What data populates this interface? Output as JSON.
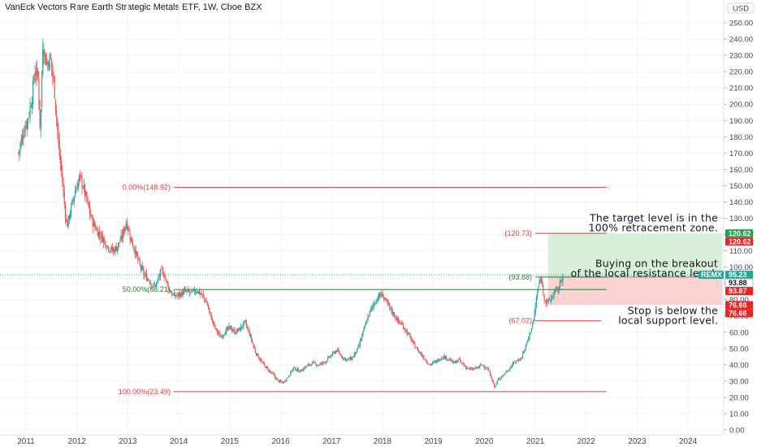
{
  "header": {
    "title": "VanEck Vectors Rare Earth Strategic Metals ETF, 1W, Cboe BZX"
  },
  "currency_label": "USD",
  "colors": {
    "up": "#26a69a",
    "down": "#ef5350",
    "fib_red": "#e03b3b",
    "fib_green": "#2e7d32",
    "target_zone": "#d8f0d9",
    "stop_zone": "#fbd2d2",
    "tag_green": "#1ea24a",
    "tag_red": "#f02323",
    "tag_teal": "#22a69a",
    "axis_text": "#434651"
  },
  "chart_data": {
    "type": "candlestick",
    "title": "VanEck Vectors Rare Earth Strategic Metals ETF, 1W, Cboe BZX",
    "ylim": [
      0,
      255
    ],
    "y_ticks": [
      0,
      10,
      20,
      30,
      40,
      50,
      60,
      70,
      80,
      90,
      100,
      110,
      120,
      130,
      140,
      150,
      160,
      170,
      180,
      190,
      200,
      210,
      220,
      230,
      240,
      250
    ],
    "y_tick_labels": [
      "0.00",
      "10.00",
      "20.00",
      "30.00",
      "40.00",
      "50.00",
      "60.00",
      "70.00",
      "80.00",
      "90.00",
      "100.00",
      "110.00",
      "120.00",
      "130.00",
      "140.00",
      "150.00",
      "160.00",
      "170.00",
      "180.00",
      "190.00",
      "200.00",
      "210.00",
      "220.00",
      "230.00",
      "240.00",
      "250.00"
    ],
    "x_ticks": [
      "2011",
      "2012",
      "2013",
      "2014",
      "2015",
      "2016",
      "2017",
      "2018",
      "2019",
      "2020",
      "2021",
      "2022",
      "2023",
      "2024"
    ],
    "xlim": [
      2010.8,
      2025.0
    ],
    "price_path": [
      [
        2010.85,
        170
      ],
      [
        2010.95,
        183
      ],
      [
        2011.05,
        193
      ],
      [
        2011.12,
        205
      ],
      [
        2011.18,
        222
      ],
      [
        2011.24,
        215
      ],
      [
        2011.28,
        182
      ],
      [
        2011.33,
        238
      ],
      [
        2011.4,
        225
      ],
      [
        2011.48,
        228
      ],
      [
        2011.55,
        212
      ],
      [
        2011.6,
        192
      ],
      [
        2011.65,
        170
      ],
      [
        2011.7,
        158
      ],
      [
        2011.75,
        140
      ],
      [
        2011.8,
        125
      ],
      [
        2011.88,
        135
      ],
      [
        2011.95,
        145
      ],
      [
        2012.05,
        155
      ],
      [
        2012.12,
        150
      ],
      [
        2012.2,
        140
      ],
      [
        2012.3,
        128
      ],
      [
        2012.4,
        122
      ],
      [
        2012.5,
        118
      ],
      [
        2012.6,
        113
      ],
      [
        2012.7,
        110
      ],
      [
        2012.78,
        112
      ],
      [
        2012.88,
        118
      ],
      [
        2012.97,
        128
      ],
      [
        2013.05,
        118
      ],
      [
        2013.12,
        112
      ],
      [
        2013.22,
        102
      ],
      [
        2013.32,
        95
      ],
      [
        2013.42,
        92
      ],
      [
        2013.5,
        88
      ],
      [
        2013.57,
        90
      ],
      [
        2013.65,
        98
      ],
      [
        2013.72,
        95
      ],
      [
        2013.8,
        87
      ],
      [
        2013.9,
        82
      ],
      [
        2014.0,
        83
      ],
      [
        2014.12,
        85
      ],
      [
        2014.25,
        84
      ],
      [
        2014.35,
        86
      ],
      [
        2014.45,
        83
      ],
      [
        2014.55,
        78
      ],
      [
        2014.62,
        70
      ],
      [
        2014.72,
        62
      ],
      [
        2014.82,
        57
      ],
      [
        2014.9,
        60
      ],
      [
        2015.0,
        63
      ],
      [
        2015.1,
        60
      ],
      [
        2015.2,
        62
      ],
      [
        2015.3,
        66
      ],
      [
        2015.4,
        58
      ],
      [
        2015.5,
        48
      ],
      [
        2015.62,
        42
      ],
      [
        2015.72,
        38
      ],
      [
        2015.85,
        34
      ],
      [
        2015.95,
        30
      ],
      [
        2016.05,
        29
      ],
      [
        2016.15,
        33
      ],
      [
        2016.25,
        38
      ],
      [
        2016.38,
        36
      ],
      [
        2016.5,
        39
      ],
      [
        2016.62,
        41
      ],
      [
        2016.75,
        40
      ],
      [
        2016.88,
        42
      ],
      [
        2017.0,
        46
      ],
      [
        2017.1,
        49
      ],
      [
        2017.2,
        45
      ],
      [
        2017.3,
        43
      ],
      [
        2017.4,
        44
      ],
      [
        2017.52,
        50
      ],
      [
        2017.62,
        60
      ],
      [
        2017.72,
        70
      ],
      [
        2017.82,
        77
      ],
      [
        2017.92,
        82
      ],
      [
        2018.0,
        83
      ],
      [
        2018.08,
        78
      ],
      [
        2018.18,
        73
      ],
      [
        2018.3,
        67
      ],
      [
        2018.4,
        64
      ],
      [
        2018.52,
        58
      ],
      [
        2018.62,
        52
      ],
      [
        2018.72,
        48
      ],
      [
        2018.82,
        44
      ],
      [
        2018.92,
        40
      ],
      [
        2019.05,
        42
      ],
      [
        2019.18,
        45
      ],
      [
        2019.28,
        44
      ],
      [
        2019.4,
        41
      ],
      [
        2019.5,
        43
      ],
      [
        2019.62,
        39
      ],
      [
        2019.72,
        37
      ],
      [
        2019.85,
        38
      ],
      [
        2019.95,
        40
      ],
      [
        2020.05,
        38
      ],
      [
        2020.12,
        34
      ],
      [
        2020.2,
        26
      ],
      [
        2020.27,
        31
      ],
      [
        2020.38,
        34
      ],
      [
        2020.5,
        38
      ],
      [
        2020.6,
        42
      ],
      [
        2020.72,
        44
      ],
      [
        2020.82,
        52
      ],
      [
        2020.9,
        60
      ],
      [
        2020.97,
        68
      ],
      [
        2021.02,
        80
      ],
      [
        2021.07,
        90
      ],
      [
        2021.12,
        93
      ],
      [
        2021.17,
        82
      ],
      [
        2021.22,
        78
      ],
      [
        2021.3,
        80
      ],
      [
        2021.38,
        85
      ],
      [
        2021.45,
        86
      ],
      [
        2021.52,
        94
      ],
      [
        2021.55,
        95.23
      ]
    ],
    "fib_levels": [
      {
        "label": "0.00%(148.92)",
        "price": 148.92,
        "x_start": 2013.9,
        "x_end": 2022.4,
        "color": "red"
      },
      {
        "label": "50.00%(86.21)",
        "price": 86.21,
        "x_start": 2013.9,
        "x_end": 2022.4,
        "color": "green"
      },
      {
        "label": "100.00%(23.49)",
        "price": 23.49,
        "x_start": 2013.9,
        "x_end": 2022.4,
        "color": "red"
      },
      {
        "label": "(120.73)",
        "price": 120.73,
        "x_start": 2021.0,
        "x_end": 2022.4,
        "color": "red"
      },
      {
        "label": "(93.88)",
        "price": 93.88,
        "x_start": 2021.0,
        "x_end": 2022.4,
        "color": "green"
      },
      {
        "label": "(67.02)",
        "price": 67.02,
        "x_start": 2021.0,
        "x_end": 2022.3,
        "color": "red"
      }
    ],
    "position": {
      "entry": 93.87,
      "target": 120.62,
      "stop": 76.66,
      "x_start": 2021.25,
      "x_end": 2025.0
    },
    "current_price": 95.23,
    "price_tags": [
      {
        "value": "120.62",
        "price": 120.62,
        "color": "green"
      },
      {
        "value": "120.62",
        "price": 120.62,
        "color": "red"
      },
      {
        "value": "95.23",
        "price": 95.23,
        "color": "teal",
        "ticker": "REMX"
      },
      {
        "value": "93.88",
        "price": 93.88,
        "color": "white"
      },
      {
        "value": "93.87",
        "price": 93.87,
        "color": "red"
      },
      {
        "value": "76.66",
        "price": 76.66,
        "color": "red"
      },
      {
        "value": "76.66",
        "price": 76.66,
        "color": "red"
      }
    ],
    "annotations": [
      {
        "lines": [
          "The target level is in the",
          "100% retracement zone."
        ],
        "price": 128
      },
      {
        "lines": [
          "Buying on the breakout",
          "of the local resistance level."
        ],
        "price": 100
      },
      {
        "lines": [
          "Stop is below the",
          "local support level."
        ],
        "price": 71
      }
    ]
  }
}
